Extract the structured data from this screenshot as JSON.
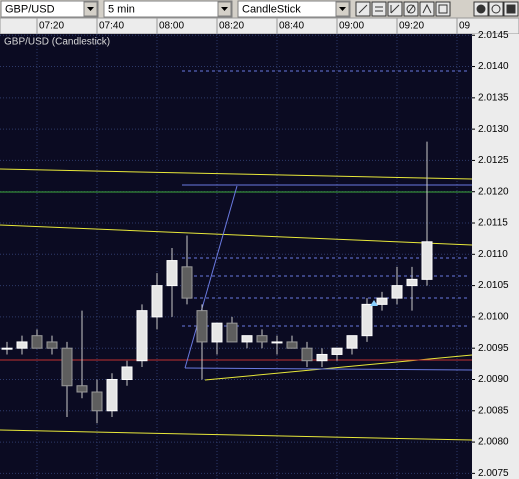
{
  "toolbar": {
    "symbol": "GBP/USD",
    "interval": "5 min",
    "chart_type": "CandleStick"
  },
  "chart_data": {
    "type": "candlestick",
    "title": "GBP/USD (Candlestick)",
    "categories": [
      null,
      null,
      "07:20",
      null,
      null,
      null,
      "07:40",
      null,
      null,
      null,
      "08:00",
      null,
      null,
      null,
      "08:20",
      null,
      null,
      null,
      "08:40",
      null,
      null,
      null,
      "09:00",
      null,
      null,
      null,
      "09:20",
      null,
      null,
      null,
      "09"
    ],
    "open": [
      2.0095,
      2.0095,
      2.0097,
      2.0096,
      2.0095,
      2.0089,
      2.0088,
      2.0085,
      2.009,
      2.0093,
      2.01,
      2.0105,
      2.0108,
      2.0101,
      2.0096,
      2.0099,
      2.0096,
      2.0097,
      2.0096,
      2.0096,
      2.0095,
      2.0093,
      2.0094,
      2.0095,
      2.0097,
      2.0102,
      2.0103,
      2.0105,
      2.0106,
      null,
      null
    ],
    "high": [
      2.0096,
      2.0097,
      2.0098,
      2.0097,
      2.0096,
      2.0101,
      2.009,
      2.0091,
      2.0093,
      2.0102,
      2.0107,
      2.0111,
      2.0113,
      2.0102,
      2.0099,
      2.01,
      2.0097,
      2.0098,
      2.0097,
      2.0097,
      2.0096,
      2.0095,
      2.0095,
      2.0097,
      2.0103,
      2.0104,
      2.0108,
      2.0108,
      2.0128,
      null,
      null
    ],
    "low": [
      2.0094,
      2.0094,
      2.0095,
      2.0094,
      2.0084,
      2.0087,
      2.0083,
      2.0084,
      2.0089,
      2.0092,
      2.0098,
      2.01,
      2.0102,
      2.009,
      2.0094,
      2.0096,
      2.0095,
      2.0095,
      2.0094,
      2.0095,
      2.0092,
      2.0092,
      2.0093,
      2.0094,
      2.0096,
      2.0101,
      2.0102,
      2.0101,
      2.0105,
      null,
      null
    ],
    "close": [
      2.0095,
      2.0096,
      2.0095,
      2.0095,
      2.0089,
      2.0088,
      2.0085,
      2.009,
      2.0092,
      2.0101,
      2.0105,
      2.0109,
      2.0103,
      2.0096,
      2.0099,
      2.0096,
      2.0097,
      2.0096,
      2.0096,
      2.0095,
      2.0093,
      2.0094,
      2.0095,
      2.0097,
      2.0102,
      2.0103,
      2.0105,
      2.0106,
      2.0112,
      null,
      null
    ],
    "up_color": "#e6e6e6",
    "down_color": "#5e5e5e",
    "ylim": [
      2.00741,
      2.01452
    ],
    "yticks": [
      2.0075,
      {
        "value": 2.008,
        "label": "2.0080"
      },
      2.0085,
      {
        "value": 2.009,
        "label": "2.0090"
      },
      2.0095,
      {
        "value": 2.01,
        "label": "2.0100"
      },
      2.0105,
      {
        "value": 2.011,
        "label": "2.0110"
      },
      2.0115,
      {
        "value": 2.012,
        "label": "2.0120"
      },
      2.0125,
      {
        "value": 2.013,
        "label": "2.0130"
      },
      2.0135,
      {
        "value": 2.014,
        "label": "2.0140"
      },
      2.0145
    ],
    "grid": true
  }
}
